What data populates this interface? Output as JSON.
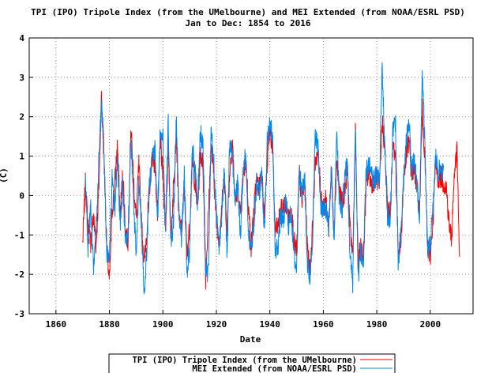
{
  "chart_data": {
    "type": "line",
    "title": "TPI (IPO) Tripole Index (from the UMelbourne) and MEI Extended (from NOAA/ESRL PSD)",
    "subtitle": "Jan to Dec: 1854 to 2016",
    "xlabel": "Date",
    "ylabel": "(C)",
    "xlim": [
      1850,
      2016
    ],
    "ylim": [
      -3,
      4
    ],
    "x_ticks": [
      1860,
      1880,
      1900,
      1920,
      1940,
      1960,
      1980,
      2000
    ],
    "y_ticks": [
      -3,
      -2,
      -1,
      0,
      1,
      2,
      3,
      4
    ],
    "grid": true,
    "legend_position": "bottom-center",
    "series": [
      {
        "name": "TPI (IPO) Tripole Index (from the UMelbourne)",
        "color": "#ff0000",
        "x": [
          1870,
          1871,
          1872,
          1873,
          1874,
          1875,
          1876,
          1877,
          1878,
          1879,
          1880,
          1881,
          1882,
          1883,
          1884,
          1885,
          1886,
          1887,
          1888,
          1889,
          1890,
          1891,
          1892,
          1893,
          1894,
          1895,
          1896,
          1897,
          1898,
          1899,
          1900,
          1901,
          1902,
          1903,
          1904,
          1905,
          1906,
          1907,
          1908,
          1909,
          1910,
          1911,
          1912,
          1913,
          1914,
          1915,
          1916,
          1917,
          1918,
          1919,
          1920,
          1921,
          1922,
          1923,
          1924,
          1925,
          1926,
          1927,
          1928,
          1929,
          1930,
          1931,
          1932,
          1933,
          1934,
          1935,
          1936,
          1937,
          1938,
          1939,
          1940,
          1941,
          1942,
          1943,
          1944,
          1945,
          1946,
          1947,
          1948,
          1949,
          1950,
          1951,
          1952,
          1953,
          1954,
          1955,
          1956,
          1957,
          1958,
          1959,
          1960,
          1961,
          1962,
          1963,
          1964,
          1965,
          1966,
          1967,
          1968,
          1969,
          1970,
          1971,
          1972,
          1973,
          1974,
          1975,
          1976,
          1977,
          1978,
          1979,
          1980,
          1981,
          1982,
          1983,
          1984,
          1985,
          1986,
          1987,
          1988,
          1989,
          1990,
          1991,
          1992,
          1993,
          1994,
          1995,
          1996,
          1997,
          1998,
          1999,
          2000,
          2001,
          2002,
          2003,
          2004,
          2005,
          2006,
          2007,
          2008,
          2009,
          2010,
          2011
        ],
        "values": [
          -1.2,
          0.3,
          -0.8,
          -1.2,
          -0.5,
          -1.3,
          0.1,
          2.5,
          0.9,
          -1.3,
          -2.2,
          -0.4,
          0.3,
          1.3,
          -0.5,
          0.6,
          -0.9,
          -1.2,
          1.8,
          0.4,
          -0.6,
          0.8,
          -0.7,
          -1.7,
          -0.9,
          0.2,
          1.0,
          0.8,
          -0.5,
          1.4,
          0.5,
          -0.9,
          1.3,
          -1.1,
          0.3,
          1.6,
          -0.6,
          -0.9,
          0.2,
          -1.5,
          -0.8,
          0.9,
          0.3,
          -0.3,
          1.1,
          0.8,
          -2.1,
          -0.5,
          1.2,
          0.6,
          -0.7,
          -1.1,
          -0.3,
          0.5,
          -0.9,
          0.6,
          1.4,
          -0.2,
          0.2,
          -0.6,
          0.5,
          0.9,
          -0.3,
          -1.3,
          -0.4,
          0.4,
          0.2,
          0.6,
          -0.5,
          0.8,
          1.7,
          1.2,
          -0.9,
          -0.8,
          -0.4,
          -0.3,
          -0.2,
          -0.6,
          -0.3,
          -1.1,
          -1.5,
          0.6,
          -0.2,
          0.4,
          -1.3,
          -1.9,
          -0.8,
          0.9,
          1.1,
          0.1,
          -0.3,
          -0.1,
          -0.8,
          0.6,
          -0.9,
          0.9,
          0.1,
          -0.2,
          0.1,
          0.7,
          -0.9,
          -1.5,
          1.6,
          -1.8,
          -1.2,
          -1.6,
          0.2,
          0.6,
          0.3,
          0.4,
          0.5,
          0.1,
          1.9,
          1.2,
          -0.3,
          -0.5,
          1.3,
          1.0,
          -1.4,
          -1.2,
          0.3,
          1.0,
          1.4,
          0.5,
          0.7,
          0.2,
          -0.4,
          2.2,
          0.9,
          -1.3,
          -1.6,
          -0.6,
          0.8,
          0.4,
          0.5,
          0.3,
          0.2,
          -0.7,
          -1.1,
          0.6,
          1.1,
          -1.8
        ]
      },
      {
        "name": "MEI Extended (from NOAA/ESRL PSD)",
        "color": "#0088ee",
        "x": [
          1871,
          1872,
          1873,
          1874,
          1875,
          1876,
          1877,
          1878,
          1879,
          1880,
          1881,
          1882,
          1883,
          1884,
          1885,
          1886,
          1887,
          1888,
          1889,
          1890,
          1891,
          1892,
          1893,
          1894,
          1895,
          1896,
          1897,
          1898,
          1899,
          1900,
          1901,
          1902,
          1903,
          1904,
          1905,
          1906,
          1907,
          1908,
          1909,
          1910,
          1911,
          1912,
          1913,
          1914,
          1915,
          1916,
          1917,
          1918,
          1919,
          1920,
          1921,
          1922,
          1923,
          1924,
          1925,
          1926,
          1927,
          1928,
          1929,
          1930,
          1931,
          1932,
          1933,
          1934,
          1935,
          1936,
          1937,
          1938,
          1939,
          1940,
          1941,
          1942,
          1943,
          1944,
          1945,
          1946,
          1947,
          1948,
          1949,
          1950,
          1951,
          1952,
          1953,
          1954,
          1955,
          1956,
          1957,
          1958,
          1959,
          1960,
          1961,
          1962,
          1963,
          1964,
          1965,
          1966,
          1967,
          1968,
          1969,
          1970,
          1971,
          1972,
          1973,
          1974,
          1975,
          1976,
          1977,
          1978,
          1979,
          1980,
          1981,
          1982,
          1983,
          1984,
          1985,
          1986,
          1987,
          1988,
          1989,
          1990,
          1991,
          1992,
          1993,
          1994,
          1995,
          1996,
          1997,
          1998,
          1999,
          2000,
          2001,
          2002,
          2003,
          2004,
          2005
        ],
        "values": [
          0.5,
          -1.4,
          -0.3,
          -1.9,
          -0.9,
          0.8,
          2.4,
          1.1,
          -1.5,
          -1.6,
          0.4,
          -0.4,
          1.1,
          -0.8,
          0.3,
          -1.2,
          -0.9,
          1.6,
          -0.2,
          -1.5,
          0.4,
          -0.8,
          -2.5,
          -1.3,
          0.3,
          0.9,
          1.2,
          -0.7,
          1.7,
          1.5,
          -0.9,
          1.9,
          -1.3,
          -0.6,
          2.0,
          -0.4,
          -1.1,
          0.5,
          -1.9,
          -1.4,
          1.3,
          0.6,
          -0.2,
          1.6,
          1.3,
          -1.8,
          -2.0,
          1.6,
          0.9,
          -0.4,
          -1.3,
          -0.5,
          0.6,
          -1.5,
          1.4,
          1.0,
          -0.1,
          0.4,
          -1.0,
          0.7,
          1.0,
          -0.9,
          -1.4,
          -0.7,
          0.3,
          0.1,
          0.5,
          -0.9,
          1.4,
          1.9,
          1.5,
          -1.4,
          -1.3,
          -0.5,
          -0.7,
          -0.1,
          -0.8,
          -0.4,
          -1.5,
          -1.9,
          0.7,
          0.0,
          0.5,
          -1.7,
          -2.1,
          -1.0,
          1.6,
          1.2,
          -0.2,
          -0.4,
          -0.3,
          -0.9,
          0.8,
          -1.2,
          1.6,
          -0.1,
          -0.4,
          0.5,
          0.8,
          -1.6,
          -2.2,
          1.8,
          -2.1,
          -1.4,
          -1.8,
          0.6,
          0.8,
          0.5,
          0.3,
          0.6,
          0.3,
          3.3,
          1.2,
          -0.5,
          -0.8,
          1.7,
          1.9,
          -1.8,
          -1.0,
          0.4,
          1.3,
          2.0,
          0.6,
          0.9,
          0.3,
          -0.6,
          3.2,
          1.2,
          -1.5,
          -1.2,
          -0.4,
          1.0,
          0.6,
          0.7,
          0.5
        ]
      }
    ]
  }
}
